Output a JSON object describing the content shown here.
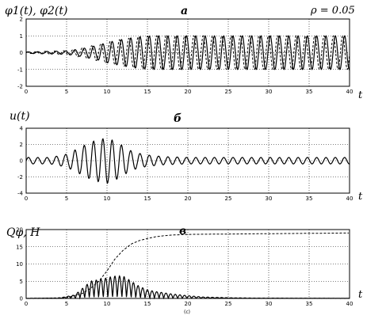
{
  "chart_data": [
    {
      "id": "a",
      "type": "line",
      "title": "а",
      "ylabel": "φ1(t), φ2(t)",
      "xlabel": "t",
      "annotation": "ρ = 0.05",
      "xlim": [
        0,
        40
      ],
      "ylim": [
        -2,
        2
      ],
      "xticks": [
        0,
        5,
        10,
        15,
        20,
        25,
        30,
        35,
        40
      ],
      "yticks": [
        -2,
        -1,
        0,
        1,
        2
      ],
      "grid": true,
      "series": [
        {
          "style": "solid",
          "x": [
            0,
            5,
            7,
            9,
            10,
            12,
            14,
            16,
            18,
            20,
            25,
            30,
            35,
            40
          ],
          "amplitude": [
            0.04,
            0.1,
            0.25,
            0.45,
            0.6,
            0.8,
            0.95,
            1.0,
            1.0,
            1.0,
            1.0,
            1.0,
            1.0,
            1.0
          ],
          "center": [
            0,
            0,
            0,
            0,
            0,
            0,
            0,
            0,
            0,
            0,
            0,
            0,
            0,
            0
          ],
          "period": 1.15
        },
        {
          "style": "dashed",
          "x": [
            0,
            5,
            7,
            9,
            10,
            12,
            14,
            16,
            18,
            20,
            25,
            30,
            35,
            40
          ],
          "amplitude": [
            0.04,
            0.12,
            0.3,
            0.5,
            0.65,
            0.8,
            0.95,
            1.0,
            1.0,
            1.0,
            1.0,
            1.0,
            1.0,
            1.0
          ],
          "center": [
            0,
            0,
            0,
            0,
            0,
            0,
            0,
            0,
            0,
            0,
            0,
            0,
            0,
            0
          ],
          "period": 1.15
        }
      ]
    },
    {
      "id": "b",
      "type": "line",
      "title": "б",
      "ylabel": "u(t)",
      "xlabel": "t",
      "xlim": [
        0,
        40
      ],
      "ylim": [
        -4,
        4
      ],
      "xticks": [
        0,
        5,
        10,
        15,
        20,
        25,
        30,
        35,
        40
      ],
      "yticks": [
        -4,
        -2,
        0,
        2,
        4
      ],
      "grid": true,
      "series": [
        {
          "style": "solid",
          "x": [
            0,
            3,
            5,
            6,
            7,
            8,
            9,
            10,
            11,
            12,
            13,
            14,
            15,
            17,
            20,
            25,
            30,
            40
          ],
          "amplitude": [
            0.4,
            0.4,
            0.8,
            1.3,
            1.8,
            2.3,
            2.6,
            2.8,
            2.4,
            1.8,
            1.2,
            0.9,
            0.7,
            0.5,
            0.4,
            0.4,
            0.4,
            0.4
          ],
          "center": [
            0,
            0,
            0,
            0,
            0,
            0,
            0,
            0,
            0,
            0,
            0,
            0,
            0,
            0,
            0,
            0,
            0,
            0
          ],
          "period": 1.15
        }
      ]
    },
    {
      "id": "c",
      "type": "line",
      "title": "в",
      "ylabel": "Qφ, H",
      "xlabel": "t",
      "footnote": "(c)",
      "xlim": [
        0,
        40
      ],
      "ylim": [
        0,
        20
      ],
      "xticks": [
        0,
        5,
        10,
        15,
        20,
        25,
        30,
        35,
        40
      ],
      "yticks": [
        0,
        5,
        10,
        15,
        20
      ],
      "grid": true,
      "series": [
        {
          "style": "dashed",
          "x": [
            0,
            5,
            7,
            8,
            9,
            10,
            11,
            12,
            13,
            14,
            15,
            16,
            17,
            18,
            20,
            25,
            30,
            35,
            40
          ],
          "y": [
            0,
            0.2,
            1.5,
            3,
            5,
            8,
            11.5,
            14,
            15.8,
            16.8,
            17.4,
            17.9,
            18.2,
            18.4,
            18.6,
            18.7,
            18.8,
            18.9,
            19.0
          ]
        },
        {
          "style": "solid",
          "x": [
            0,
            4,
            6,
            7,
            8,
            9,
            10,
            11,
            12,
            13,
            14,
            15,
            16,
            18,
            20,
            22,
            25,
            28,
            40
          ],
          "amplitude": [
            0,
            0.1,
            1.0,
            3.0,
            5.0,
            5.5,
            6.0,
            6.5,
            6.5,
            5.0,
            3.5,
            2.5,
            2.0,
            1.3,
            0.8,
            0.4,
            0.2,
            0.1,
            0.05
          ],
          "center": [
            0,
            0,
            0,
            0,
            0,
            0,
            0,
            0,
            0,
            0,
            0,
            0,
            0,
            0,
            0,
            0,
            0,
            0,
            0
          ],
          "period": 1.15,
          "rectified": true
        }
      ]
    }
  ]
}
